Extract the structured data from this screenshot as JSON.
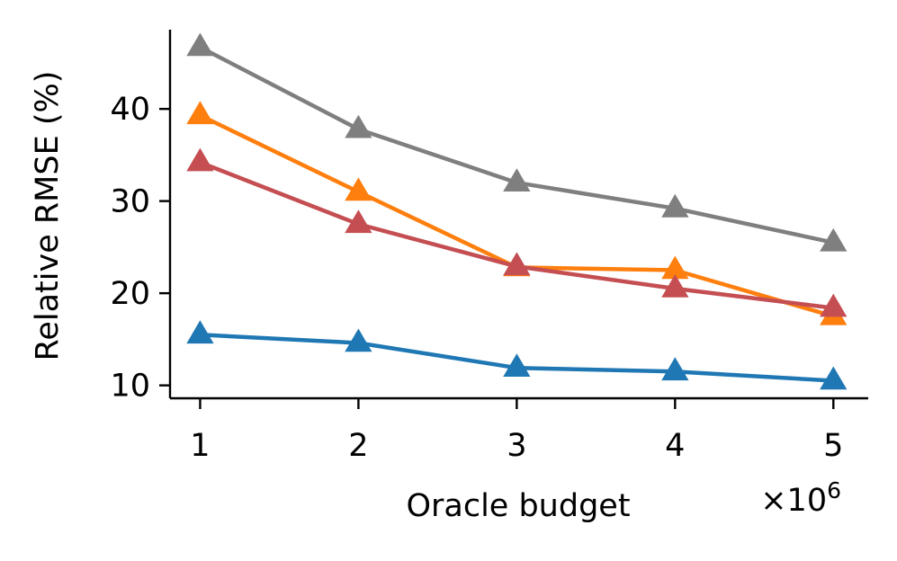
{
  "chart_data": {
    "type": "line",
    "title": "",
    "xlabel": "Oracle budget",
    "ylabel": "Relative RMSE (%)",
    "x_multiplier_label": "×10",
    "x_multiplier_exponent": "6",
    "x": [
      1,
      2,
      3,
      4,
      5
    ],
    "x_ticks": [
      1,
      2,
      3,
      4,
      5
    ],
    "x_tick_labels": [
      "1",
      "2",
      "3",
      "4",
      "5"
    ],
    "xlim": [
      0.81,
      5.22
    ],
    "y_ticks": [
      10,
      20,
      30,
      40
    ],
    "y_tick_labels": [
      "10",
      "20",
      "30",
      "40"
    ],
    "ylim": [
      8.6,
      48.6
    ],
    "grid": false,
    "legend": "none",
    "marker": "triangle-up",
    "series": [
      {
        "color": "#7f7f7f",
        "values": [
          46.7,
          37.8,
          32.0,
          29.2,
          25.5
        ]
      },
      {
        "color": "#ff7f0e",
        "values": [
          39.3,
          31.0,
          22.8,
          22.5,
          17.5
        ]
      },
      {
        "color": "#c44e52",
        "values": [
          34.2,
          27.5,
          22.9,
          20.5,
          18.4
        ]
      },
      {
        "color": "#1f77b4",
        "values": [
          15.5,
          14.6,
          11.9,
          11.5,
          10.5
        ]
      }
    ]
  }
}
